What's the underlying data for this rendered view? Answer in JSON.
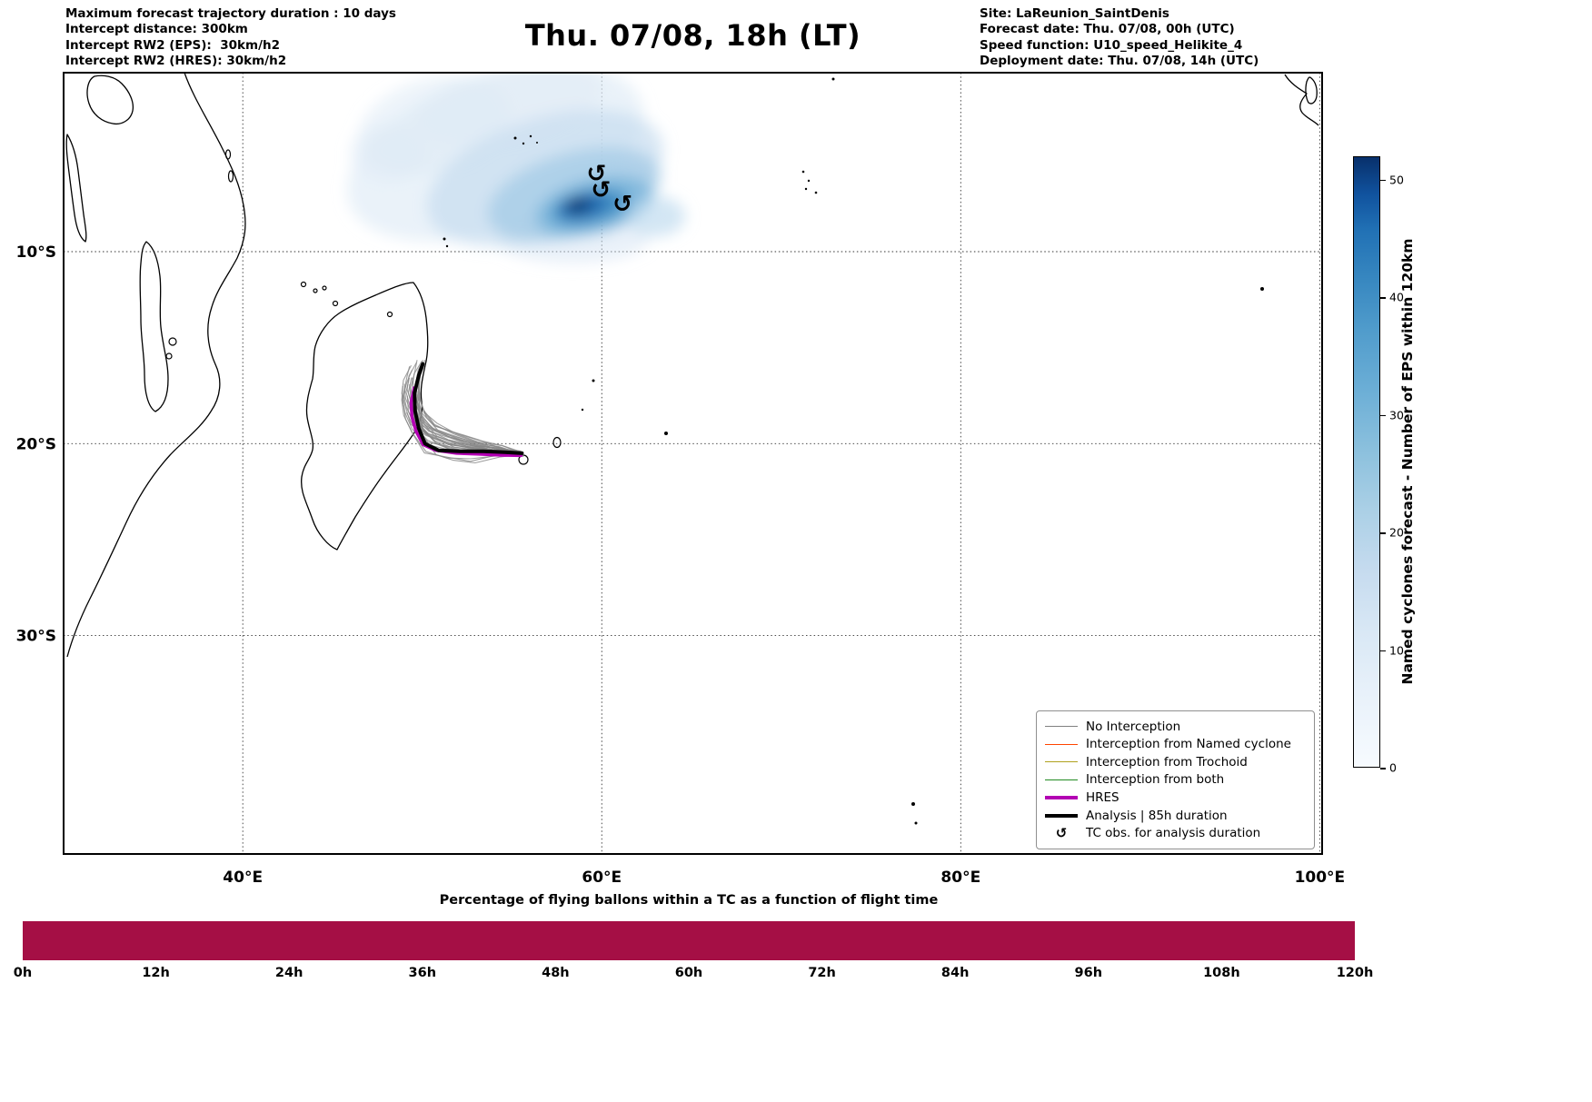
{
  "header": {
    "left_lines": [
      "Maximum forecast trajectory duration : 10 days",
      "Intercept distance: 300km",
      "Intercept RW2 (EPS):  30km/h2",
      "Intercept RW2 (HRES): 30km/h2"
    ],
    "title": "Thu. 07/08, 18h (LT)",
    "right_lines": [
      "Site: LaReunion_SaintDenis",
      "Forecast date: Thu. 07/08, 00h (UTC)",
      "Speed function: U10_speed_Helikite_4",
      "Deployment date: Thu. 07/08, 14h (UTC)"
    ]
  },
  "map": {
    "x_ticks": [
      {
        "label": "40°E",
        "lon": 40
      },
      {
        "label": "60°E",
        "lon": 60
      },
      {
        "label": "80°E",
        "lon": 80
      },
      {
        "label": "100°E",
        "lon": 100
      }
    ],
    "y_ticks": [
      {
        "label": "10°S",
        "lat": -10
      },
      {
        "label": "20°S",
        "lat": -20
      },
      {
        "label": "30°S",
        "lat": -30
      }
    ]
  },
  "legend": {
    "items": [
      {
        "label": "No Interception",
        "swatch": "line",
        "color": "#808080",
        "width": 1.5
      },
      {
        "label": "Interception from Named cyclone",
        "swatch": "line",
        "color": "#FF4500",
        "width": 1.5
      },
      {
        "label": "Interception from Trochoid",
        "swatch": "line",
        "color": "#B0A11E",
        "width": 1.5
      },
      {
        "label": "Interception from both",
        "swatch": "line",
        "color": "#228B22",
        "width": 1.5
      },
      {
        "label": "HRES",
        "swatch": "line",
        "color": "#B300B3",
        "width": 4
      },
      {
        "label": "Analysis | 85h duration",
        "swatch": "line",
        "color": "#000000",
        "width": 4
      },
      {
        "label": "TC obs. for analysis duration",
        "swatch": "glyph",
        "glyph": "↺",
        "color": "#000000"
      }
    ]
  },
  "colorbar": {
    "label": "Named cyclones forecast - Number of EPS within 120km",
    "ticks": [
      0,
      10,
      20,
      30,
      40,
      50
    ],
    "vmax": 52
  },
  "bottom_chart": {
    "title": "Percentage of flying ballons within a TC as a function of flight time",
    "x_ticks": [
      "0h",
      "12h",
      "24h",
      "36h",
      "48h",
      "60h",
      "72h",
      "84h",
      "96h",
      "108h",
      "120h"
    ],
    "bar_color": "#A50F45"
  },
  "chart_data": [
    {
      "type": "heatmap",
      "title": "Thu. 07/08, 18h (LT)",
      "lon_ticks_deg_e": [
        40,
        60,
        80,
        100
      ],
      "lat_ticks_deg_s": [
        10,
        20,
        30
      ],
      "lon_range_deg_e": [
        30,
        100.2
      ],
      "lat_range_deg_s": [
        0.6,
        40.7
      ],
      "colormap": "Blues",
      "vmax": 52,
      "colorbar_ticks": [
        0,
        10,
        20,
        30,
        40,
        50
      ],
      "colorbar_label": "Named cyclones forecast - Number of EPS within 120km",
      "density_peak": {
        "lon": 58.7,
        "lat": -7.4,
        "value_approx": 52
      },
      "plume_extent": {
        "lon_min": 47.0,
        "lon_max": 65.5,
        "lat_min": -11.3,
        "lat_max": -2.2
      },
      "tc_obs": [
        {
          "lon": 59.7,
          "lat": -5.9
        },
        {
          "lon": 59.95,
          "lat": -6.75
        },
        {
          "lon": 61.15,
          "lat": -7.5
        }
      ],
      "ensemble_members": 30,
      "ensemble_release_point": {
        "lon": 55.5,
        "lat": -20.6
      },
      "analysis_track": [
        [
          55.55,
          -20.5
        ],
        [
          54.6,
          -20.45
        ],
        [
          53.4,
          -20.4
        ],
        [
          52.1,
          -20.4
        ],
        [
          50.9,
          -20.35
        ],
        [
          50.15,
          -20.0
        ],
        [
          49.8,
          -19.2
        ],
        [
          49.6,
          -18.3
        ],
        [
          49.57,
          -17.35
        ],
        [
          49.8,
          -16.45
        ],
        [
          50.03,
          -15.85
        ]
      ],
      "hres_track": [
        [
          55.5,
          -20.62
        ],
        [
          54.4,
          -20.6
        ],
        [
          53.2,
          -20.55
        ],
        [
          51.9,
          -20.5
        ],
        [
          50.75,
          -20.35
        ],
        [
          50.05,
          -20.05
        ],
        [
          49.65,
          -19.35
        ],
        [
          49.42,
          -18.6
        ],
        [
          49.38,
          -17.85
        ],
        [
          49.55,
          -17.1
        ]
      ]
    },
    {
      "type": "bar",
      "title": "Percentage of flying ballons within a TC as a function of flight time",
      "x_ticks_hours": [
        0,
        12,
        24,
        36,
        48,
        60,
        72,
        84,
        96,
        108,
        120
      ],
      "x_range_hours": [
        0,
        120
      ],
      "bars": [
        {
          "from_h": 0,
          "to_h": 120,
          "relative_height": 1.0
        }
      ],
      "bar_color": "#A50F45",
      "y_axis_visible": false
    }
  ]
}
